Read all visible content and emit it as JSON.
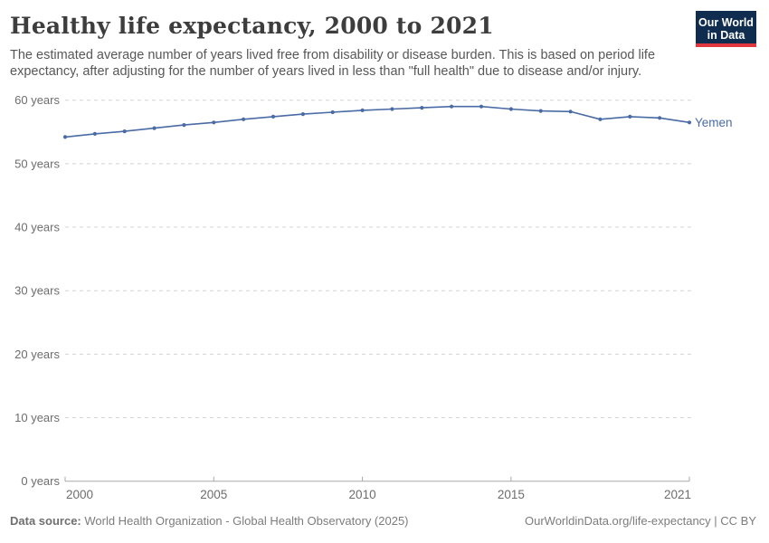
{
  "header": {
    "title": "Healthy life expectancy, 2000 to 2021",
    "subtitle": "The estimated average number of years lived free from disability or disease burden. This is based on period life expectancy, after adjusting for the number of years lived in less than \"full health\" due to disease and/or injury.",
    "logo": {
      "line1": "Our World",
      "line2": "in Data",
      "bg_color": "#102d50",
      "accent_color": "#e0373f"
    }
  },
  "chart_data": {
    "type": "line",
    "title": "Healthy life expectancy, 2000 to 2021",
    "x": [
      2000,
      2001,
      2002,
      2003,
      2004,
      2005,
      2006,
      2007,
      2008,
      2009,
      2010,
      2011,
      2012,
      2013,
      2014,
      2015,
      2016,
      2017,
      2018,
      2019,
      2020,
      2021
    ],
    "series": [
      {
        "name": "Yemen",
        "color": "#4a6ba5",
        "values": [
          54.2,
          54.7,
          55.1,
          55.6,
          56.1,
          56.5,
          57.0,
          57.4,
          57.8,
          58.1,
          58.4,
          58.6,
          58.8,
          59.0,
          59.0,
          58.6,
          58.3,
          58.2,
          57.0,
          57.4,
          57.2,
          56.5
        ]
      }
    ],
    "xlabel": "",
    "ylabel": "",
    "ylim": [
      0,
      60
    ],
    "yticks": [
      0,
      10,
      20,
      30,
      40,
      50,
      60
    ],
    "ytick_suffix": " years",
    "xticks": [
      2000,
      2005,
      2010,
      2015,
      2021
    ],
    "grid": "horizontal-dashed",
    "legend_position": "end-of-line",
    "colors": {
      "grid": "#d4d4d4",
      "axis": "#a8a8a8",
      "tick_label": "#6d6d6d"
    }
  },
  "footer": {
    "datasource_label": "Data source:",
    "datasource_text": " World Health Organization - Global Health Observatory (2025)",
    "license_text": "OurWorldinData.org/life-expectancy | CC BY"
  }
}
